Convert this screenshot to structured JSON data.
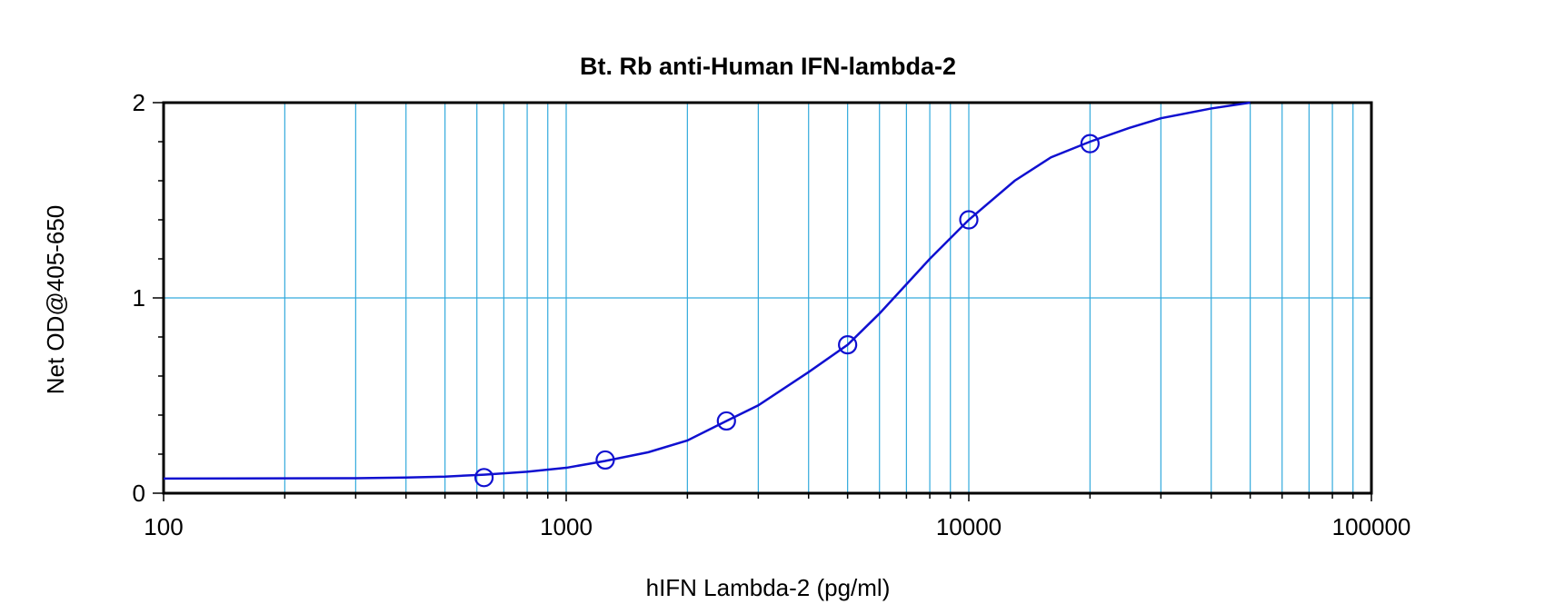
{
  "chart_data": {
    "type": "line",
    "title": "Bt. Rb anti-Human IFN-lambda-2",
    "xlabel": "hIFN Lambda-2 (pg/ml)",
    "ylabel": "Net OD@405-650",
    "x_scale": "log",
    "xlim": [
      100,
      100000
    ],
    "ylim": [
      0,
      2
    ],
    "x_ticks": [
      "100",
      "1000",
      "10000",
      "100000"
    ],
    "y_ticks": [
      "0",
      "1",
      "2"
    ],
    "grid": true,
    "points": {
      "x": [
        625,
        1250,
        2500,
        5000,
        10000,
        20000
      ],
      "y": [
        0.08,
        0.17,
        0.37,
        0.76,
        1.4,
        1.79
      ]
    },
    "fit_curve": {
      "x": [
        100,
        200,
        300,
        400,
        500,
        625,
        800,
        1000,
        1250,
        1600,
        2000,
        2500,
        3000,
        4000,
        5000,
        6000,
        8000,
        10000,
        13000,
        16000,
        20000,
        25000,
        30000,
        40000,
        50000
      ],
      "y": [
        0.075,
        0.076,
        0.077,
        0.08,
        0.085,
        0.095,
        0.11,
        0.13,
        0.165,
        0.21,
        0.27,
        0.37,
        0.45,
        0.62,
        0.76,
        0.92,
        1.2,
        1.4,
        1.6,
        1.72,
        1.8,
        1.87,
        1.92,
        1.97,
        2.0
      ]
    },
    "colors": {
      "series": "#1010d0",
      "grid": "#33aadd",
      "axis": "#000000"
    }
  }
}
